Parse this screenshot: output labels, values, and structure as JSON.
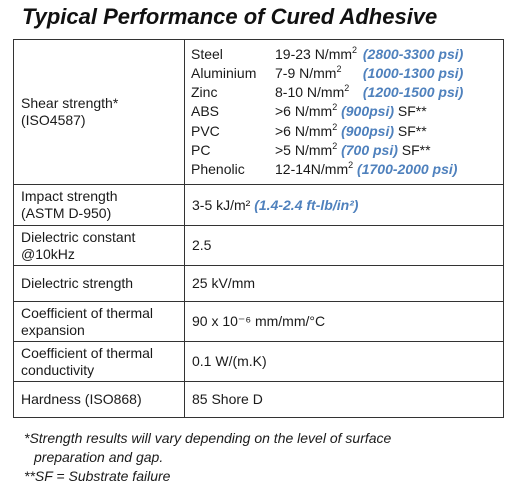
{
  "title": "Typical Performance of Cured Adhesive",
  "rows": [
    {
      "property": "Shear strength*",
      "standard": "(ISO4587)",
      "materials": [
        {
          "material": "Steel",
          "value": "19-23 N/mm²",
          "value_main": "19-23 N/mm",
          "imperial": "(2800-3300 psi)",
          "suffix": ""
        },
        {
          "material": "Aluminium",
          "value": "7-9 N/mm²",
          "value_main": "7-9 N/mm",
          "imperial": "(1000-1300 psi)",
          "suffix": ""
        },
        {
          "material": "Zinc",
          "value": "8-10 N/mm²",
          "value_main": "8-10 N/mm",
          "imperial": "(1200-1500 psi)",
          "suffix": ""
        },
        {
          "material": "ABS",
          "value": ">6 N/mm²",
          "value_main": ">6 N/mm",
          "imperial": "(900psi)",
          "suffix": "SF**"
        },
        {
          "material": "PVC",
          "value": ">6 N/mm²",
          "value_main": ">6 N/mm",
          "imperial": "(900psi)",
          "suffix": "SF**"
        },
        {
          "material": "PC",
          "value": ">5 N/mm²",
          "value_main": ">5 N/mm",
          "imperial": "(700 psi)",
          "suffix": "SF**"
        },
        {
          "material": "Phenolic",
          "value": "12-14N/mm²",
          "value_main": "12-14N/mm",
          "imperial": "(1700-2000 psi)",
          "suffix": ""
        }
      ]
    },
    {
      "property": "Impact strength",
      "standard": "(ASTM D-950)",
      "value": "3-5 kJ/m²",
      "imperial": "(1.4-2.4 ft-lb/in²)"
    },
    {
      "property": "Dielectric constant",
      "standard": "@10kHz",
      "value": "2.5"
    },
    {
      "property": "Dielectric strength",
      "value": "25 kV/mm"
    },
    {
      "property": "Coefficient of thermal",
      "standard": "expansion",
      "value": "90 x 10⁻⁶ mm/mm/°C"
    },
    {
      "property": "Coefficient of thermal",
      "standard": "conductivity",
      "value": "0.1 W/(m.K)"
    },
    {
      "property": "Hardness (ISO868)",
      "value": "85 Shore D"
    }
  ],
  "notes": {
    "line1": "*Strength results will vary depending on the level of surface",
    "line2": "preparation and gap.",
    "line3": "**SF = Substrate failure"
  }
}
